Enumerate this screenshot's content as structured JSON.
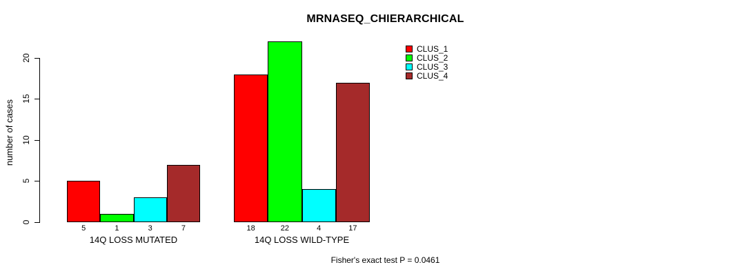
{
  "chart_data": {
    "type": "bar",
    "title": "MRNASEQ_CHIERARCHICAL",
    "ylabel": "number of cases",
    "xlabel": "",
    "categories": [
      "14Q LOSS MUTATED",
      "14Q LOSS WILD-TYPE"
    ],
    "series": [
      {
        "name": "CLUS_1",
        "color": "#FF0000",
        "values": [
          5,
          18
        ]
      },
      {
        "name": "CLUS_2",
        "color": "#00FF00",
        "values": [
          1,
          22
        ]
      },
      {
        "name": "CLUS_3",
        "color": "#00FFFF",
        "values": [
          3,
          4
        ]
      },
      {
        "name": "CLUS_4",
        "color": "#A52A2A",
        "values": [
          7,
          17
        ]
      }
    ],
    "yticks": [
      0,
      5,
      10,
      15,
      20
    ],
    "ylim": [
      0,
      22.4
    ],
    "show_value_labels": true,
    "annotation": "Fisher's exact test P = 0.0461",
    "legend_position": "top-right",
    "legend_entries": [
      "CLUS_1",
      "CLUS_2",
      "CLUS_3",
      "CLUS_4"
    ],
    "grid": false,
    "axis_color": "#000000",
    "background_color": "#FFFFFF"
  }
}
